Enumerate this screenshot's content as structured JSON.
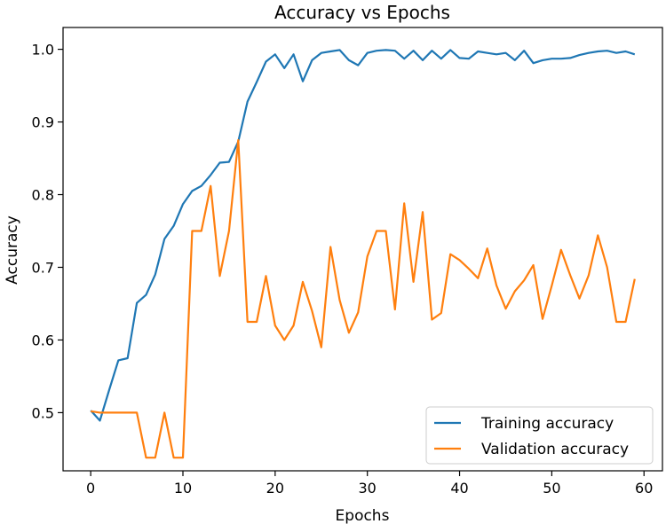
{
  "chart_data": {
    "type": "line",
    "title": "Accuracy vs Epochs",
    "xlabel": "Epochs",
    "ylabel": "Accuracy",
    "xlim": [
      -3,
      62
    ],
    "ylim": [
      0.42,
      1.03
    ],
    "xticks": [
      0,
      10,
      20,
      30,
      40,
      50,
      60
    ],
    "yticks": [
      0.5,
      0.6,
      0.7,
      0.8,
      0.9,
      1.0
    ],
    "ytick_labels": [
      "0.5",
      "0.6",
      "0.7",
      "0.8",
      "0.9",
      "1.0"
    ],
    "grid": false,
    "legend_position": "lower-right",
    "series": [
      {
        "name": "Training accuracy",
        "color": "#1f77b4",
        "x": [
          0,
          1,
          2,
          3,
          4,
          5,
          6,
          7,
          8,
          9,
          10,
          11,
          12,
          13,
          14,
          15,
          16,
          17,
          18,
          19,
          20,
          21,
          22,
          23,
          24,
          25,
          26,
          27,
          28,
          29,
          30,
          31,
          32,
          33,
          34,
          35,
          36,
          37,
          38,
          39,
          40,
          41,
          42,
          43,
          44,
          45,
          46,
          47,
          48,
          49,
          50,
          51,
          52,
          53,
          54,
          55,
          56,
          57,
          58,
          59
        ],
        "values": [
          0.503,
          0.489,
          0.531,
          0.572,
          0.575,
          0.651,
          0.662,
          0.69,
          0.739,
          0.757,
          0.787,
          0.805,
          0.812,
          0.827,
          0.844,
          0.845,
          0.873,
          0.928,
          0.955,
          0.983,
          0.993,
          0.974,
          0.993,
          0.956,
          0.985,
          0.995,
          0.997,
          0.999,
          0.985,
          0.978,
          0.995,
          0.998,
          0.999,
          0.998,
          0.987,
          0.998,
          0.985,
          0.998,
          0.987,
          0.999,
          0.988,
          0.987,
          0.997,
          0.995,
          0.993,
          0.995,
          0.985,
          0.998,
          0.981,
          0.985,
          0.987,
          0.987,
          0.988,
          0.992,
          0.995,
          0.997,
          0.998,
          0.995,
          0.997,
          0.993
        ]
      },
      {
        "name": "Validation accuracy",
        "color": "#ff7f0e",
        "x": [
          0,
          1,
          2,
          3,
          4,
          5,
          6,
          7,
          8,
          9,
          10,
          11,
          12,
          13,
          14,
          15,
          16,
          17,
          18,
          19,
          20,
          21,
          22,
          23,
          24,
          25,
          26,
          27,
          28,
          29,
          30,
          31,
          32,
          33,
          34,
          35,
          36,
          37,
          38,
          39,
          40,
          41,
          42,
          43,
          44,
          45,
          46,
          47,
          48,
          49,
          50,
          51,
          52,
          53,
          54,
          55,
          56,
          57,
          58,
          59
        ],
        "values": [
          0.502,
          0.5,
          0.5,
          0.5,
          0.5,
          0.5,
          0.438,
          0.438,
          0.5,
          0.438,
          0.438,
          0.75,
          0.75,
          0.812,
          0.688,
          0.75,
          0.875,
          0.625,
          0.625,
          0.688,
          0.62,
          0.6,
          0.62,
          0.68,
          0.64,
          0.59,
          0.728,
          0.655,
          0.61,
          0.638,
          0.715,
          0.75,
          0.75,
          0.642,
          0.788,
          0.68,
          0.776,
          0.628,
          0.637,
          0.718,
          0.71,
          0.698,
          0.685,
          0.726,
          0.675,
          0.643,
          0.667,
          0.682,
          0.703,
          0.629,
          0.675,
          0.724,
          0.689,
          0.657,
          0.689,
          0.744,
          0.7,
          0.625,
          0.625,
          0.684
        ]
      }
    ]
  }
}
